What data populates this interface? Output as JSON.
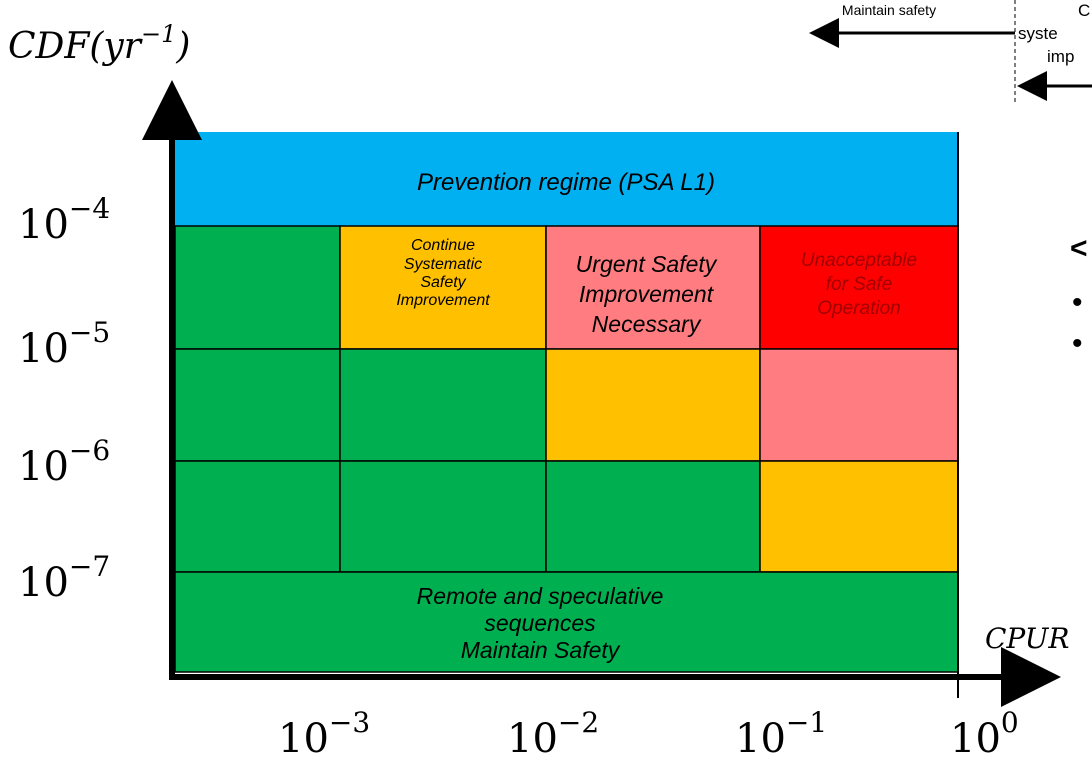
{
  "y_axis": {
    "label": {
      "main": "CDF(yr",
      "exp": "−1",
      "close": ")"
    },
    "ticks": [
      {
        "base": "10",
        "exp": "−4"
      },
      {
        "base": "10",
        "exp": "−5"
      },
      {
        "base": "10",
        "exp": "−6"
      },
      {
        "base": "10",
        "exp": "−7"
      }
    ]
  },
  "x_axis": {
    "label": "CPUR",
    "ticks": [
      {
        "base": "10",
        "exp": "−3"
      },
      {
        "base": "10",
        "exp": "−2"
      },
      {
        "base": "10",
        "exp": "−1"
      },
      {
        "base": "10",
        "exp": "0"
      }
    ]
  },
  "top_band": "Prevention regime (PSA L1)",
  "bottom_band": [
    "Remote and speculative",
    "sequences",
    "Maintain Safety"
  ],
  "cells": {
    "continue": [
      "Continue",
      "Systematic",
      "Safety",
      "Improvement"
    ],
    "urgent": [
      "Urgent Safety",
      "Improvement",
      "Necessary"
    ],
    "unacceptable": [
      "Unacceptable",
      "for Safe",
      "Operation"
    ]
  },
  "legend": {
    "left": "Maintain safety",
    "right": [
      "C",
      "syste",
      "imp"
    ]
  },
  "side": {
    "heading": "<",
    "bullets": [
      "•",
      "•"
    ]
  }
}
